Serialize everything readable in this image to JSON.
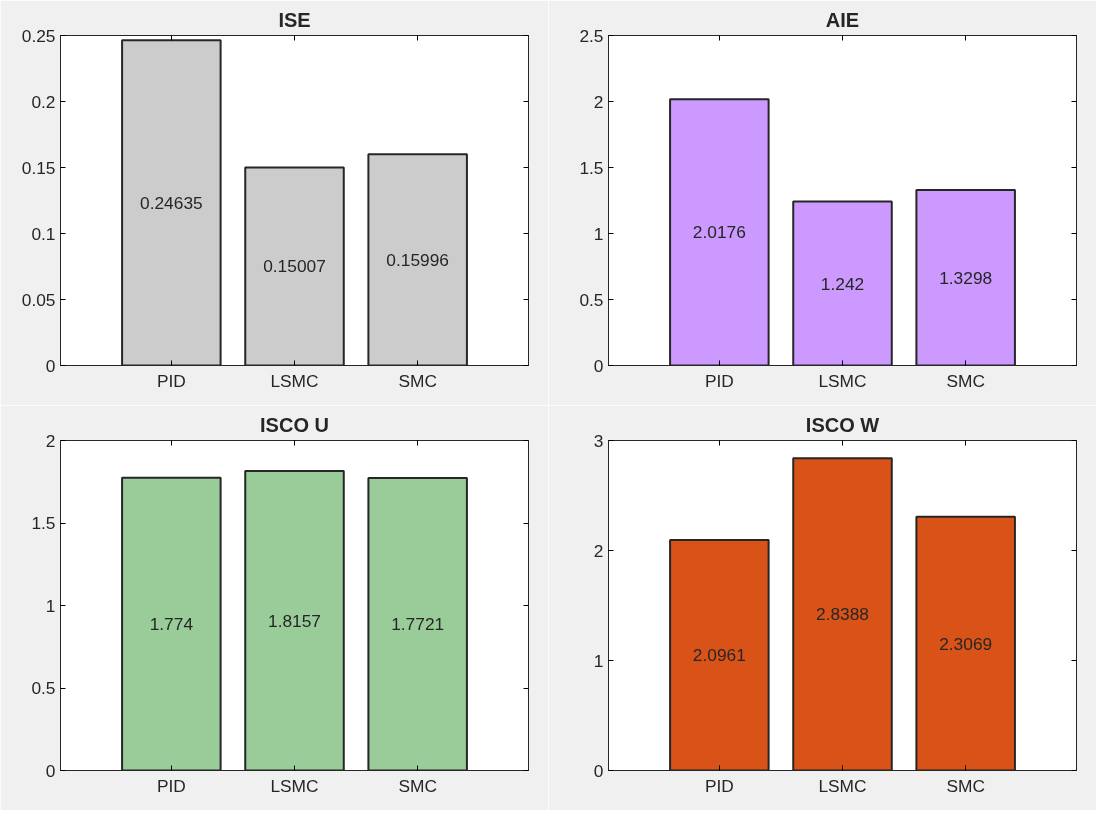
{
  "chart_data": [
    {
      "type": "bar",
      "title": "ISE",
      "categories": [
        "PID",
        "LSMC",
        "SMC"
      ],
      "values": [
        0.24635,
        0.15007,
        0.15996
      ],
      "color": "#cccccc",
      "ylim": [
        0,
        0.25
      ],
      "yticks": [
        0,
        0.05,
        0.1,
        0.15,
        0.2,
        0.25
      ],
      "data_labels": true,
      "grid": false
    },
    {
      "type": "bar",
      "title": "AIE",
      "categories": [
        "PID",
        "LSMC",
        "SMC"
      ],
      "values": [
        2.0176,
        1.242,
        1.3298
      ],
      "color": "#cc99ff",
      "ylim": [
        0,
        2.5
      ],
      "yticks": [
        0,
        0.5,
        1,
        1.5,
        2,
        2.5
      ],
      "data_labels": true,
      "grid": false
    },
    {
      "type": "bar",
      "title": "ISCO U",
      "categories": [
        "PID",
        "LSMC",
        "SMC"
      ],
      "values": [
        1.774,
        1.8157,
        1.7721
      ],
      "color": "#99cc99",
      "ylim": [
        0,
        2
      ],
      "yticks": [
        0,
        0.5,
        1,
        1.5,
        2
      ],
      "data_labels": true,
      "grid": false
    },
    {
      "type": "bar",
      "title": "ISCO W",
      "categories": [
        "PID",
        "LSMC",
        "SMC"
      ],
      "values": [
        2.0961,
        2.8388,
        2.3069
      ],
      "color": "#d95319",
      "ylim": [
        0,
        3
      ],
      "yticks": [
        0,
        1,
        2,
        3
      ],
      "data_labels": true,
      "grid": false
    }
  ]
}
